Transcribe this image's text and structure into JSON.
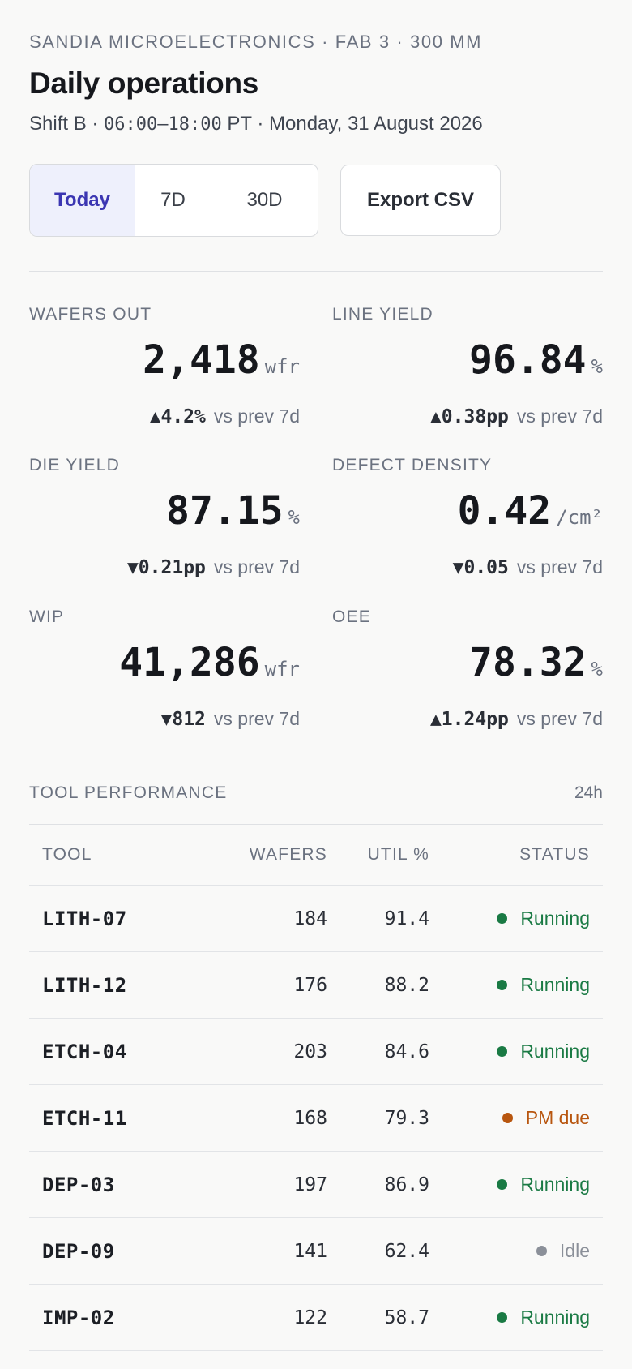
{
  "header": {
    "org": "SANDIA MICROELECTRONICS · FAB 3 · 300 MM",
    "title": "Daily operations",
    "shift": "Shift B",
    "time_range": "06:00–18:00",
    "tz": "PT",
    "date": "Monday, 31 August 2026",
    "sep": "·"
  },
  "range_selector": {
    "options": [
      "Today",
      "7D",
      "30D"
    ],
    "selected": "Today"
  },
  "export_label": "Export CSV",
  "kpis": [
    {
      "label": "WAFERS OUT",
      "value": "2,418",
      "unit": "wfr",
      "delta": "▲4.2%",
      "compare": "vs prev 7d"
    },
    {
      "label": "LINE YIELD",
      "value": "96.84",
      "unit": "%",
      "delta": "▲0.38pp",
      "compare": "vs prev 7d"
    },
    {
      "label": "DIE YIELD",
      "value": "87.15",
      "unit": "%",
      "delta": "▼0.21pp",
      "compare": "vs prev 7d"
    },
    {
      "label": "DEFECT DENSITY",
      "value": "0.42",
      "unit": "/cm²",
      "delta": "▼0.05",
      "compare": "vs prev 7d"
    },
    {
      "label": "WIP",
      "value": "41,286",
      "unit": "wfr",
      "delta": "▼812",
      "compare": "vs prev 7d"
    },
    {
      "label": "OEE",
      "value": "78.32",
      "unit": "%",
      "delta": "▲1.24pp",
      "compare": "vs prev 7d"
    }
  ],
  "tool_performance": {
    "title": "TOOL PERFORMANCE",
    "period": "24h",
    "columns": {
      "tool": "TOOL",
      "wafers": "WAFERS",
      "util": "UTIL %",
      "status": "STATUS"
    },
    "rows": [
      {
        "tool": "LITH-07",
        "wafers": "184",
        "util": "91.4",
        "status": "Running"
      },
      {
        "tool": "LITH-12",
        "wafers": "176",
        "util": "88.2",
        "status": "Running"
      },
      {
        "tool": "ETCH-04",
        "wafers": "203",
        "util": "84.6",
        "status": "Running"
      },
      {
        "tool": "ETCH-11",
        "wafers": "168",
        "util": "79.3",
        "status": "PM due"
      },
      {
        "tool": "DEP-03",
        "wafers": "197",
        "util": "86.9",
        "status": "Running"
      },
      {
        "tool": "DEP-09",
        "wafers": "141",
        "util": "62.4",
        "status": "Idle"
      },
      {
        "tool": "IMP-02",
        "wafers": "122",
        "util": "58.7",
        "status": "Running"
      }
    ]
  },
  "colors": {
    "running": "#1a7a44",
    "pm_due": "#b8560f",
    "idle": "#8b9099",
    "accent": "#3b36b2"
  }
}
